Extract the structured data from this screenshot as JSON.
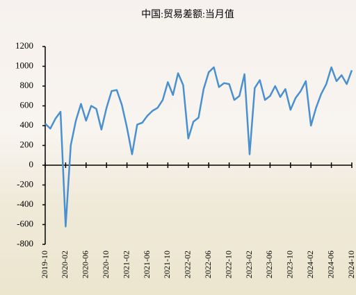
{
  "chart_data": {
    "type": "line",
    "title": "中国:贸易差额:当月值",
    "categories": [
      "2019-10",
      null,
      null,
      null,
      "2020-02",
      null,
      null,
      null,
      "2020-06",
      null,
      null,
      null,
      "2020-10",
      null,
      null,
      null,
      "2021-02",
      null,
      null,
      null,
      "2021-06",
      null,
      null,
      null,
      "2021-10",
      null,
      null,
      null,
      "2022-02",
      null,
      null,
      null,
      "2022-06",
      null,
      null,
      null,
      "2022-10",
      null,
      null,
      null,
      "2023-02",
      null,
      null,
      null,
      "2023-06",
      null,
      null,
      null,
      "2023-10",
      null,
      null,
      null,
      "2024-02",
      null,
      null,
      null,
      "2024-06",
      null,
      null,
      null,
      "2024-10"
    ],
    "series": [
      {
        "name": "中国:贸易差额:当月值",
        "color": "#4a90d0",
        "values": [
          420,
          370,
          470,
          540,
          -620,
          200,
          450,
          620,
          450,
          600,
          570,
          360,
          580,
          750,
          760,
          610,
          380,
          110,
          410,
          430,
          500,
          550,
          580,
          660,
          840,
          710,
          930,
          810,
          270,
          440,
          480,
          770,
          940,
          990,
          790,
          830,
          820,
          660,
          700,
          920,
          110,
          780,
          860,
          660,
          700,
          800,
          690,
          770,
          560,
          680,
          750,
          850,
          400,
          580,
          720,
          820,
          990,
          850,
          910,
          820,
          960
        ]
      }
    ],
    "ylim": [
      -800,
      1200
    ],
    "yticks": [
      -800,
      -600,
      -400,
      -200,
      0,
      200,
      400,
      600,
      800,
      1000,
      1200
    ],
    "grid": false
  }
}
